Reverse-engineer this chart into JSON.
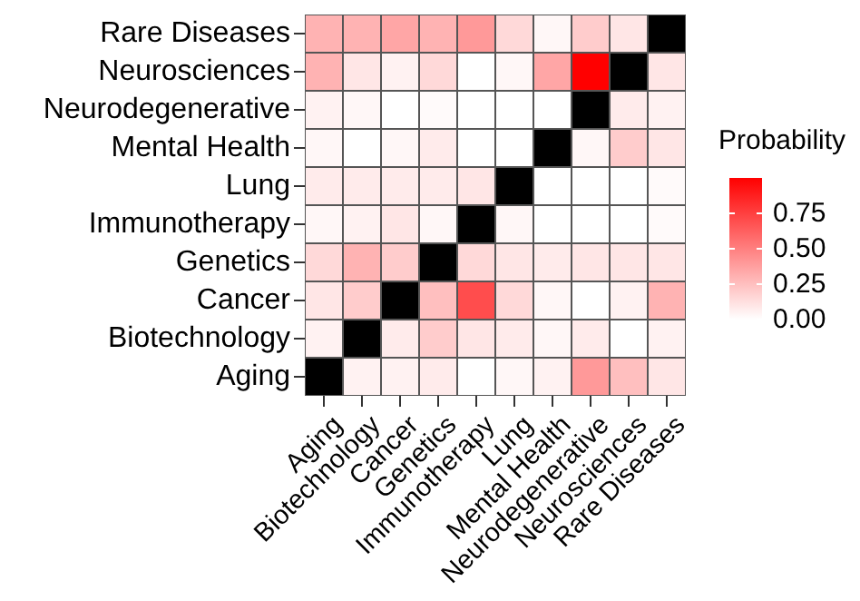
{
  "chart_data": {
    "type": "heatmap",
    "clabel": "Probability",
    "categories": [
      "Aging",
      "Biotechnology",
      "Cancer",
      "Genetics",
      "Immunotherapy",
      "Lung",
      "Mental Health",
      "Neurodegenerative",
      "Neurosciences",
      "Rare Diseases"
    ],
    "y_categories": [
      "Rare Diseases",
      "Neurosciences",
      "Neurodegenerative",
      "Mental Health",
      "Lung",
      "Immunotherapy",
      "Genetics",
      "Cancer",
      "Biotechnology",
      "Aging"
    ],
    "cells": [
      [
        0.3,
        0.3,
        0.35,
        0.3,
        0.4,
        0.15,
        0.03,
        0.2,
        0.1,
        null
      ],
      [
        0.3,
        0.1,
        0.05,
        0.15,
        0,
        0.03,
        0.35,
        1.0,
        null,
        0.1
      ],
      [
        0.05,
        0.03,
        0,
        0.02,
        0,
        0,
        0,
        null,
        0.08,
        0.05
      ],
      [
        0.03,
        0,
        0.03,
        0.08,
        0,
        0,
        null,
        0.03,
        0.2,
        0.1
      ],
      [
        0.08,
        0.08,
        0.08,
        0.08,
        0.1,
        null,
        0,
        0,
        0,
        0.02
      ],
      [
        0.03,
        0.05,
        0.1,
        0.03,
        null,
        0.03,
        0,
        0,
        0,
        0.02
      ],
      [
        0.15,
        0.3,
        0.2,
        null,
        0.15,
        0.1,
        0.08,
        0.1,
        0.1,
        0.1
      ],
      [
        0.1,
        0.2,
        null,
        0.25,
        0.7,
        0.15,
        0.03,
        0,
        0.05,
        0.3
      ],
      [
        0.05,
        null,
        0.08,
        0.2,
        0.1,
        0.08,
        0.03,
        0.08,
        0,
        0.05
      ],
      [
        null,
        0.05,
        0.05,
        0.08,
        0,
        0.03,
        0.05,
        0.4,
        0.25,
        0.1
      ]
    ],
    "clim": [
      0,
      1
    ],
    "cticks": [
      {
        "value": 0,
        "label": "0.00"
      },
      0.25,
      {
        "value": 0.5,
        "label": "0.50"
      },
      0.75
    ]
  }
}
